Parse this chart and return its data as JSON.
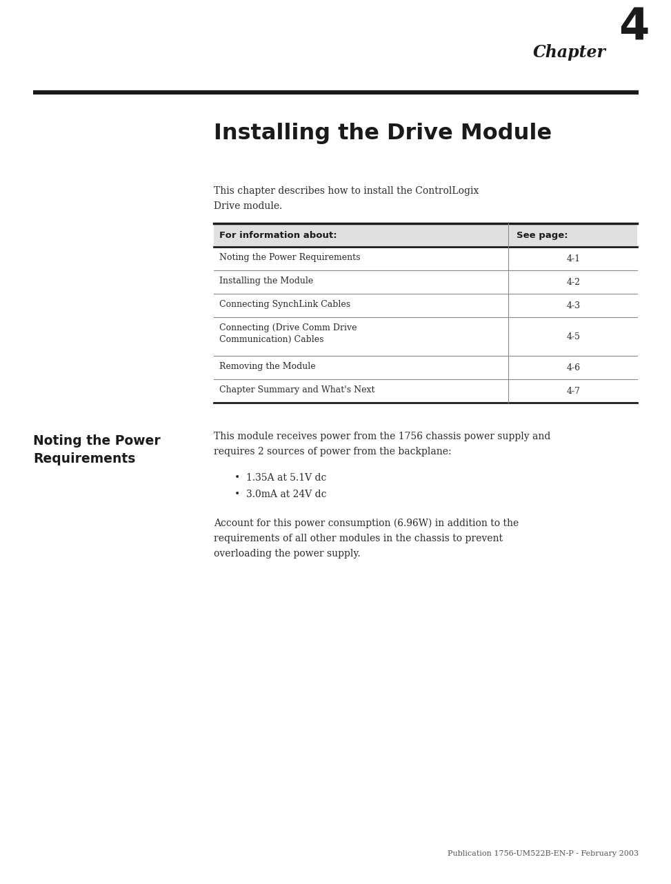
{
  "bg_color": "#ffffff",
  "fig_w": 9.54,
  "fig_h": 12.43,
  "dpi": 100,
  "chapter_label": "Chapter",
  "chapter_number": "4",
  "page_title": "Installing the Drive Module",
  "intro_line1": "This chapter describes how to install the ControlLogix",
  "intro_line2": "Drive module.",
  "table_col1_header": "For information about:",
  "table_col2_header": "See page:",
  "table_rows": [
    [
      "Noting the Power Requirements",
      "4-1"
    ],
    [
      "Installing the Module",
      "4-2"
    ],
    [
      "Connecting SynchLink Cables",
      "4-3"
    ],
    [
      "Connecting (Drive Comm Drive\nCommunication) Cables",
      "4-5"
    ],
    [
      "Removing the Module",
      "4-6"
    ],
    [
      "Chapter Summary and What's Next",
      "4-7"
    ]
  ],
  "section_title_line1": "Noting the Power",
  "section_title_line2": "Requirements",
  "body_line1": "This module receives power from the 1756 chassis power supply and",
  "body_line2": "requires 2 sources of power from the backplane:",
  "bullet1": "•  1.35A at 5.1V dc",
  "bullet2": "•  3.0mA at 24V dc",
  "para2_line1": "Account for this power consumption (6.96W) in addition to the",
  "para2_line2": "requirements of all other modules in the chassis to prevent",
  "para2_line3": "overloading the power supply.",
  "footer": "Publication 1756-UM522B-EN-P - February 2003",
  "text_color": "#1a1a1a",
  "body_color": "#2a2a2a",
  "rule_color": "#1a1a1a",
  "table_header_bg": "#e0e0e0",
  "table_border_color": "#1a1a1a",
  "table_line_color": "#888888"
}
